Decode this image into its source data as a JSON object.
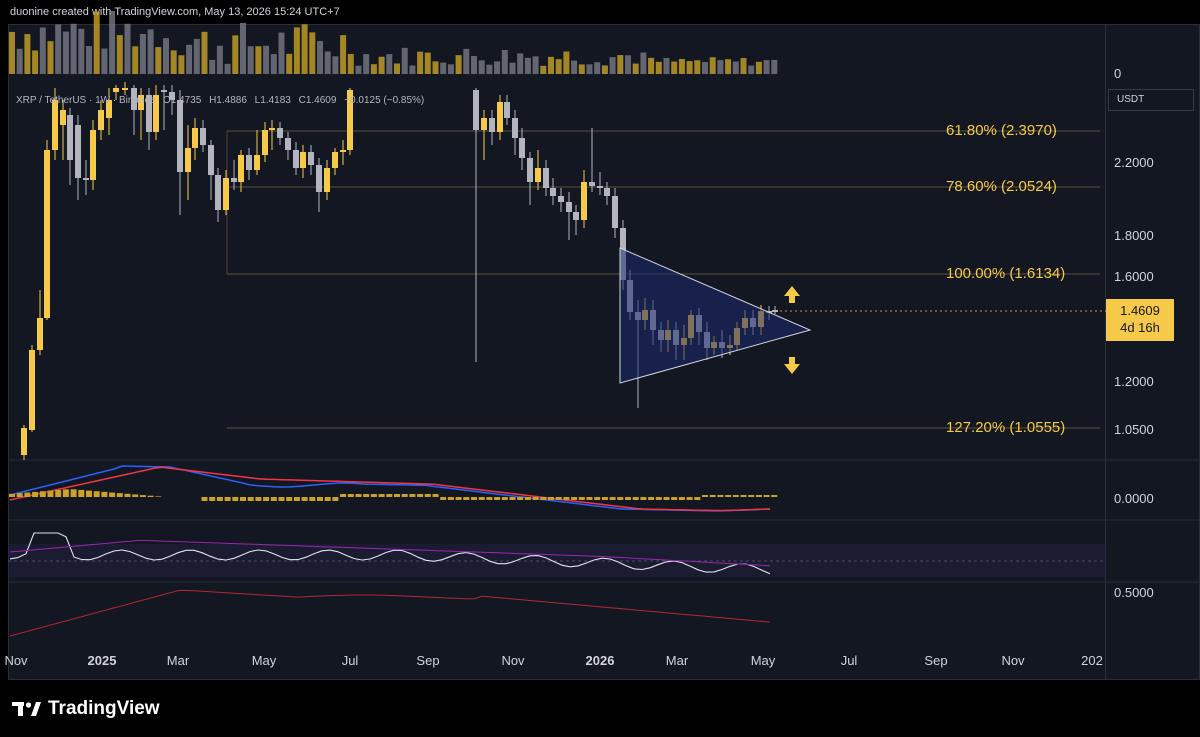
{
  "header": {
    "credit": "duonine created with TradingView.com, May 13, 2026 15:24 UTC+7"
  },
  "legend": {
    "symbol": "XRP / TetherUS · 1W · Binance",
    "open": "O1.4735",
    "high": "H1.4886",
    "low": "L1.4183",
    "close": "C1.4609",
    "change": "−0.0125 (−0.85%)"
  },
  "price_axis": {
    "currency": "USDT",
    "ticks": [
      "2.2000",
      "1.8000",
      "1.6000",
      "1.2000",
      "1.0500"
    ],
    "volume_tick": "0",
    "macd_tick": "0.0000",
    "rsi_tick": "0.5000",
    "last_price": "1.4609",
    "countdown": "4d 16h"
  },
  "fibonacci": [
    {
      "label": "61.80% (2.3970)",
      "price": 2.397
    },
    {
      "label": "78.60% (2.0524)",
      "price": 2.0524
    },
    {
      "label": "100.00% (1.6134)",
      "price": 1.6134
    },
    {
      "label": "127.20% (1.0555)",
      "price": 1.0555
    }
  ],
  "time_axis": [
    "Nov",
    "2025",
    "Mar",
    "May",
    "Jul",
    "Sep",
    "Nov",
    "2026",
    "Mar",
    "May",
    "Jul",
    "Sep",
    "Nov",
    "202"
  ],
  "time_axis_bold": [
    "2025",
    "2026"
  ],
  "colors": {
    "up": "#f7c948",
    "down": "#b2b5be",
    "fib": "#f7c948",
    "macd": "#2962ff",
    "signal": "#f23645",
    "triangle_fill": "#1c2a6e"
  },
  "chart_data": {
    "type": "candlestick",
    "symbol": "XRPUSDT",
    "interval": "1W",
    "annotations": [
      "symmetrical triangle",
      "breakout up arrow",
      "breakdown down arrow"
    ],
    "last_close": 1.4609
  },
  "footer": {
    "brand": "TradingView"
  }
}
